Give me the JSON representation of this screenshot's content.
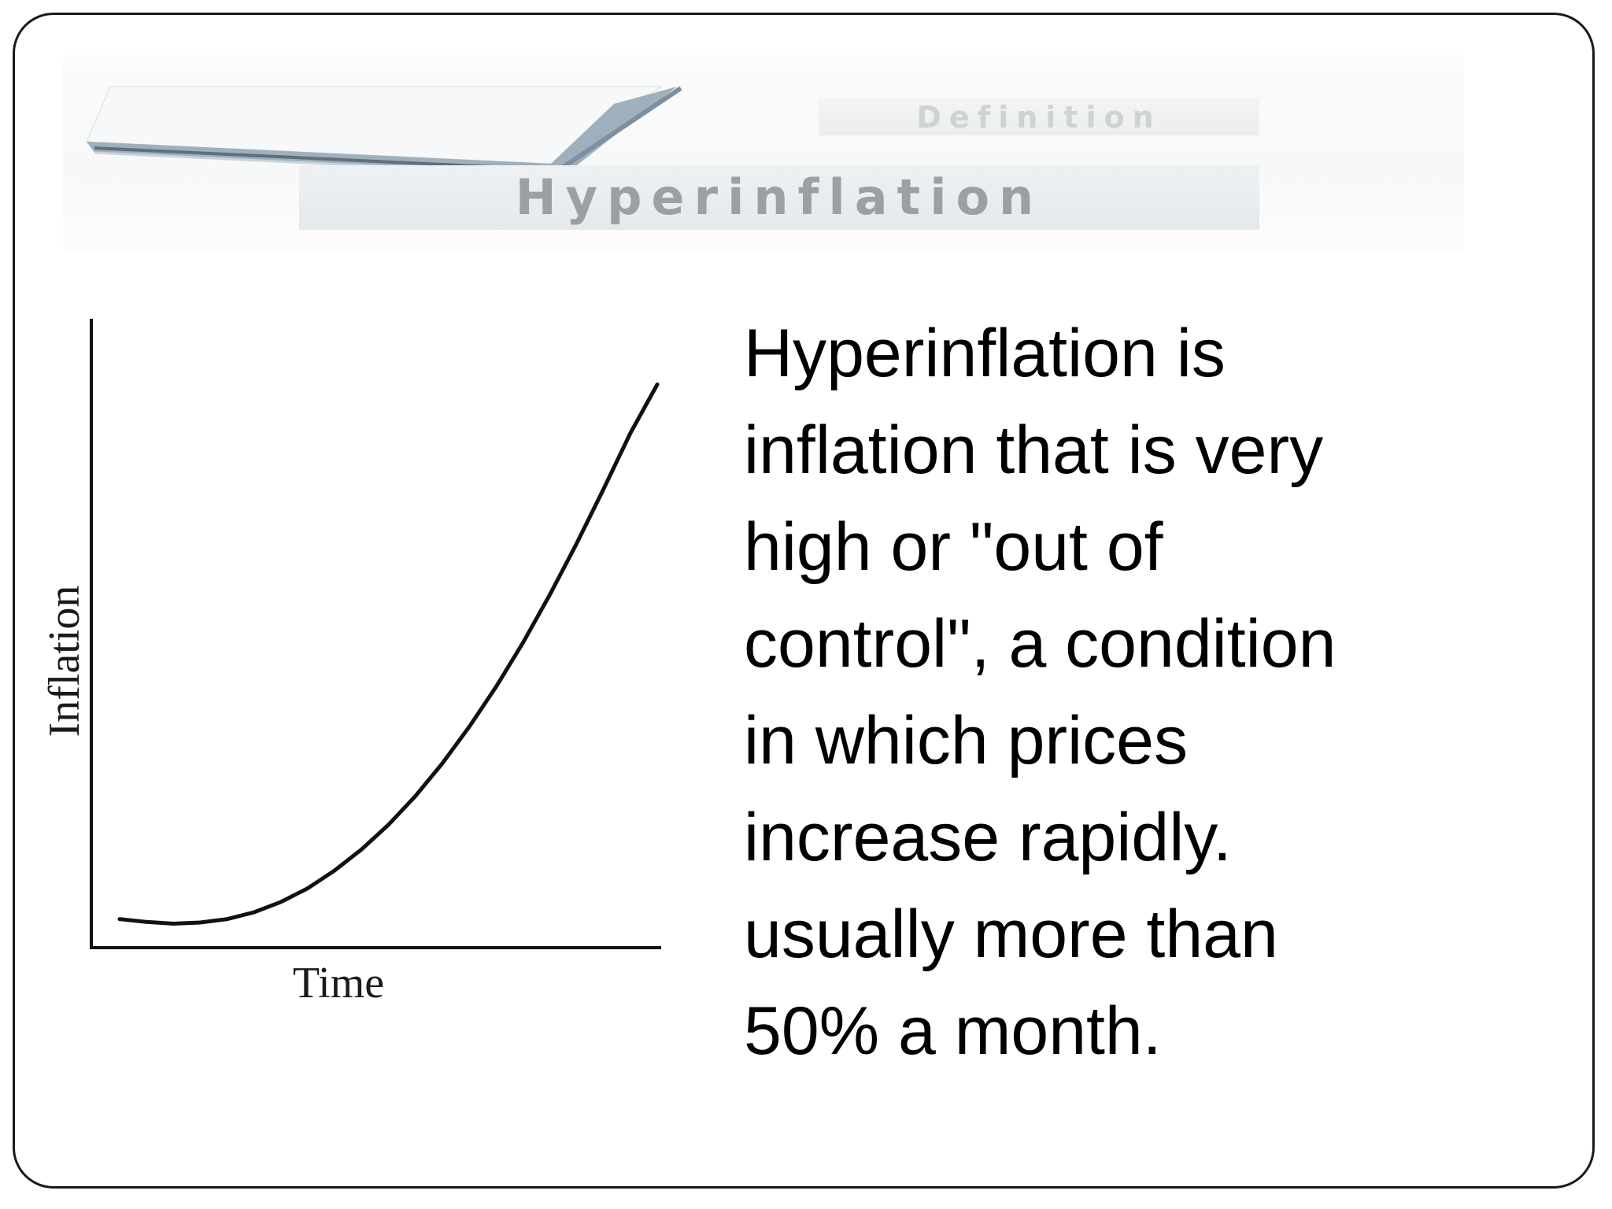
{
  "banner": {
    "subtitle": "Definition",
    "title": "Hyperinflation"
  },
  "chart_data": {
    "type": "line",
    "title": "",
    "xlabel": "Time",
    "ylabel": "Inflation",
    "grid": false,
    "legend": "none",
    "ticks": false,
    "series": [
      {
        "x": [
          0,
          0.05,
          0.1,
          0.15,
          0.2,
          0.25,
          0.3,
          0.35,
          0.4,
          0.45,
          0.5,
          0.55,
          0.6,
          0.65,
          0.7,
          0.75,
          0.8,
          0.85,
          0.9,
          0.95,
          1.0
        ],
        "y": [
          0.05,
          0.045,
          0.042,
          0.044,
          0.05,
          0.062,
          0.08,
          0.104,
          0.135,
          0.172,
          0.215,
          0.265,
          0.322,
          0.386,
          0.456,
          0.533,
          0.617,
          0.707,
          0.802,
          0.9,
          0.985
        ]
      }
    ],
    "xlim": [
      0,
      1.06
    ],
    "ylim": [
      0,
      1.1
    ],
    "line_color": "#111111"
  },
  "body": {
    "lines": [
      "Hyperinflation is",
      "inflation that is very",
      "high or \"out of",
      "control\", a condition",
      "in which prices",
      "increase rapidly.",
      "usually more than",
      "50% a month."
    ]
  }
}
